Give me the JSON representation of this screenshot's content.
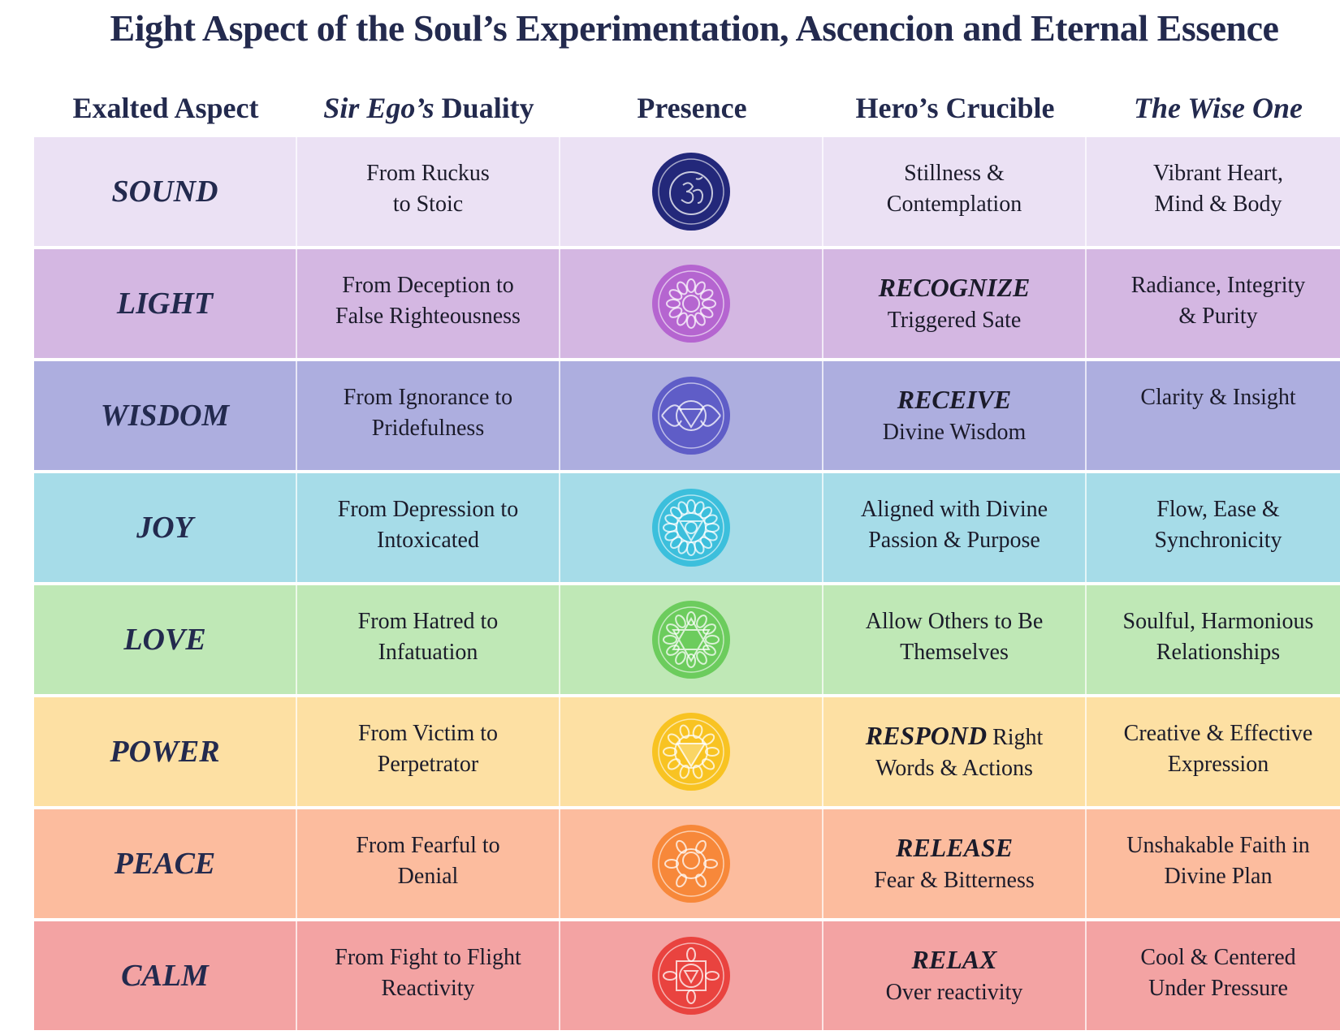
{
  "title": "Eight Aspect of the Soul’s Experimentation, Ascencion and Eternal Essence",
  "headers": {
    "aspect": "Exalted Aspect",
    "duality_italic": "Sir Ego’s",
    "duality_rest": " Duality",
    "presence": "Presence",
    "crucible": "Hero’s Crucible",
    "wise": "The Wise One"
  },
  "rows": [
    {
      "aspect": "SOUND",
      "bg": "#ebe1f4",
      "icon": "om-chakra-icon",
      "icon_color": "#23287a",
      "duality": [
        "From Ruckus",
        "to Stoic"
      ],
      "crucible_kw": "",
      "crucible": [
        "Stillness &",
        "Contemplation"
      ],
      "wise": [
        "Vibrant Heart,",
        "Mind & Body"
      ]
    },
    {
      "aspect": "LIGHT",
      "bg": "#d4b7e2",
      "icon": "crown-chakra-icon",
      "icon_color": "#b565d0",
      "duality": [
        "From Deception to",
        "False Righteousness"
      ],
      "crucible_kw": "RECOGNIZE",
      "crucible": [
        "Triggered Sate"
      ],
      "wise": [
        "Radiance, Integrity",
        "& Purity"
      ]
    },
    {
      "aspect": "WISDOM",
      "bg": "#adaedf",
      "icon": "third-eye-chakra-icon",
      "icon_color": "#5f5dc7",
      "duality": [
        "From Ignorance to",
        "Pridefulness"
      ],
      "crucible_kw": "RECEIVE",
      "crucible": [
        "Divine Wisdom"
      ],
      "wise": [
        "Clarity & Insight"
      ]
    },
    {
      "aspect": "JOY",
      "bg": "#a6dce8",
      "icon": "throat-chakra-icon",
      "icon_color": "#3cbfdc",
      "duality": [
        "From Depression to",
        "Intoxicated"
      ],
      "crucible_kw": "",
      "crucible": [
        "Aligned with Divine",
        "Passion & Purpose"
      ],
      "wise": [
        "Flow, Ease &",
        "Synchronicity"
      ]
    },
    {
      "aspect": "LOVE",
      "bg": "#bfe8b6",
      "icon": "heart-chakra-icon",
      "icon_color": "#6ccc5d",
      "duality": [
        "From Hatred to",
        "Infatuation"
      ],
      "crucible_kw": "",
      "crucible": [
        "Allow Others to Be",
        "Themselves"
      ],
      "wise": [
        "Soulful, Harmonious",
        "Relationships"
      ]
    },
    {
      "aspect": "POWER",
      "bg": "#fde0a3",
      "icon": "solar-plexus-chakra-icon",
      "icon_color": "#f8c322",
      "duality": [
        "From Victim to",
        "Perpetrator"
      ],
      "crucible_kw": "RESPOND",
      "crucible_inline": " Right",
      "crucible": [
        "Words & Actions"
      ],
      "wise": [
        "Creative & Effective",
        "Expression"
      ]
    },
    {
      "aspect": "PEACE",
      "bg": "#fcbc9e",
      "icon": "sacral-chakra-icon",
      "icon_color": "#f7883a",
      "duality": [
        "From Fearful to",
        "Denial"
      ],
      "crucible_kw": "RELEASE",
      "crucible": [
        "Fear & Bitterness"
      ],
      "wise": [
        "Unshakable Faith in",
        "Divine Plan"
      ]
    },
    {
      "aspect": "CALM",
      "bg": "#f3a3a3",
      "icon": "root-chakra-icon",
      "icon_color": "#e9433f",
      "duality": [
        "From Fight to Flight",
        "Reactivity"
      ],
      "crucible_kw": "RELAX",
      "crucible": [
        "Over reactivity"
      ],
      "wise": [
        "Cool & Centered",
        "Under Pressure"
      ]
    }
  ]
}
